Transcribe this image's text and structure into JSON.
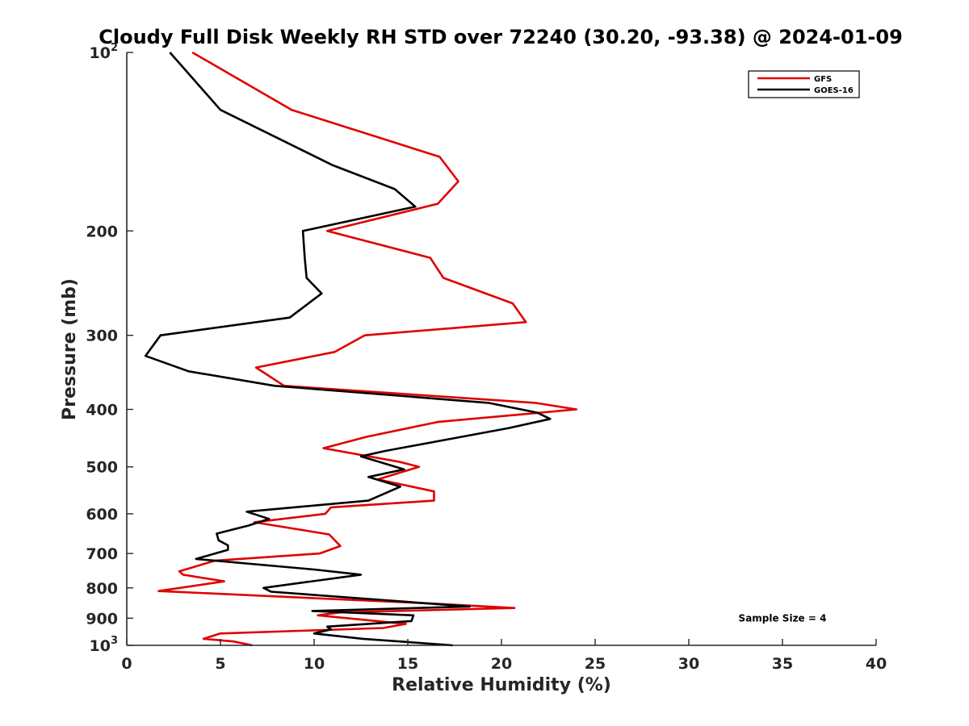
{
  "chart_data": {
    "type": "line",
    "title": "Cloudy Full Disk Weekly RH STD over 72240 (30.20, -93.38) @ 2024-01-09",
    "xlabel": "Relative Humidity (%)",
    "ylabel": "Pressure (mb)",
    "xlim": [
      0,
      40
    ],
    "ylim": [
      100,
      1000
    ],
    "yscale": "log",
    "y_reversed": true,
    "grid": false,
    "x_ticks": [
      0,
      5,
      10,
      15,
      20,
      25,
      30,
      35,
      40
    ],
    "y_ticks": [
      {
        "value": 100,
        "base": "10",
        "exp": "2"
      },
      {
        "value": 200,
        "label": "200"
      },
      {
        "value": 300,
        "label": "300"
      },
      {
        "value": 400,
        "label": "400"
      },
      {
        "value": 500,
        "label": "500"
      },
      {
        "value": 600,
        "label": "600"
      },
      {
        "value": 700,
        "label": "700"
      },
      {
        "value": 800,
        "label": "800"
      },
      {
        "value": 900,
        "label": "900"
      },
      {
        "value": 1000,
        "base": "10",
        "exp": "3"
      }
    ],
    "legend_position": "top-right",
    "series": [
      {
        "name": "GFS",
        "color": "#e00000",
        "points": [
          [
            3.5,
            100
          ],
          [
            8.8,
            125
          ],
          [
            16.7,
            150
          ],
          [
            17.7,
            165
          ],
          [
            16.6,
            180
          ],
          [
            10.7,
            200
          ],
          [
            16.2,
            222
          ],
          [
            16.9,
            240
          ],
          [
            20.6,
            265
          ],
          [
            21.3,
            285
          ],
          [
            12.7,
            300
          ],
          [
            11.1,
            320
          ],
          [
            6.9,
            340
          ],
          [
            8.4,
            365
          ],
          [
            21.8,
            390
          ],
          [
            24.0,
            400
          ],
          [
            16.6,
            420
          ],
          [
            12.8,
            445
          ],
          [
            10.5,
            465
          ],
          [
            14.5,
            490
          ],
          [
            15.6,
            500
          ],
          [
            13.4,
            525
          ],
          [
            16.4,
            550
          ],
          [
            16.4,
            570
          ],
          [
            10.9,
            585
          ],
          [
            10.6,
            600
          ],
          [
            6.8,
            620
          ],
          [
            10.8,
            650
          ],
          [
            11.4,
            680
          ],
          [
            10.3,
            700
          ],
          [
            4.7,
            720
          ],
          [
            2.8,
            750
          ],
          [
            3.0,
            760
          ],
          [
            5.2,
            780
          ],
          [
            1.7,
            810
          ],
          [
            16.2,
            850
          ],
          [
            20.7,
            865
          ],
          [
            11.4,
            880
          ],
          [
            10.2,
            890
          ],
          [
            14.9,
            920
          ],
          [
            13.7,
            935
          ],
          [
            5.0,
            955
          ],
          [
            4.1,
            975
          ],
          [
            5.7,
            985
          ],
          [
            6.7,
            1000
          ]
        ]
      },
      {
        "name": "GOES-16",
        "color": "#000000",
        "points": [
          [
            2.3,
            100
          ],
          [
            5.0,
            125
          ],
          [
            11.0,
            155
          ],
          [
            14.3,
            170
          ],
          [
            15.4,
            182
          ],
          [
            9.4,
            200
          ],
          [
            9.5,
            222
          ],
          [
            9.6,
            240
          ],
          [
            10.4,
            255
          ],
          [
            8.7,
            280
          ],
          [
            1.8,
            300
          ],
          [
            1.0,
            325
          ],
          [
            3.3,
            345
          ],
          [
            7.9,
            365
          ],
          [
            19.3,
            390
          ],
          [
            21.9,
            405
          ],
          [
            22.6,
            415
          ],
          [
            20.4,
            430
          ],
          [
            13.8,
            470
          ],
          [
            12.5,
            480
          ],
          [
            14.8,
            505
          ],
          [
            12.9,
            520
          ],
          [
            14.6,
            540
          ],
          [
            12.9,
            570
          ],
          [
            6.4,
            595
          ],
          [
            7.6,
            612
          ],
          [
            6.5,
            628
          ],
          [
            4.8,
            648
          ],
          [
            4.9,
            665
          ],
          [
            5.4,
            678
          ],
          [
            5.4,
            690
          ],
          [
            3.7,
            715
          ],
          [
            10.0,
            745
          ],
          [
            12.5,
            760
          ],
          [
            7.3,
            800
          ],
          [
            7.7,
            812
          ],
          [
            18.3,
            860
          ],
          [
            9.9,
            875
          ],
          [
            15.3,
            890
          ],
          [
            15.2,
            910
          ],
          [
            10.7,
            930
          ],
          [
            10.9,
            940
          ],
          [
            10.0,
            955
          ],
          [
            12.6,
            975
          ],
          [
            17.4,
            1000
          ]
        ]
      }
    ],
    "annotations": [
      {
        "text": "Sample Size = 4",
        "x": 35,
        "y": 900
      }
    ]
  }
}
